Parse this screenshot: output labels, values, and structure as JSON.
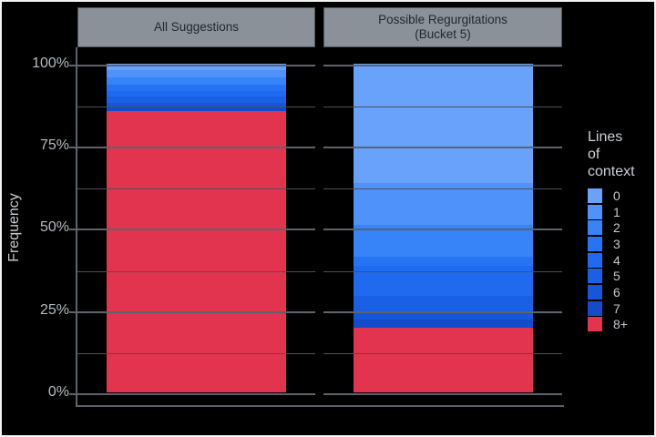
{
  "figure": {
    "background": "#000000",
    "border_color": "#f2f2f2"
  },
  "facet_headers": [
    {
      "lines": [
        "All Suggestions"
      ]
    },
    {
      "lines": [
        "Possible Regurgitations",
        "(Bucket 5)"
      ]
    }
  ],
  "y_axis": {
    "title": "Frequency",
    "tick_labels": [
      "100%",
      "75%",
      "50%",
      "25%",
      "0%"
    ],
    "major_pcts": [
      0,
      25,
      50,
      75,
      100
    ],
    "minor_pcts": [
      12.5,
      37.5,
      62.5,
      87.5
    ]
  },
  "legend": {
    "title_lines": [
      "Lines",
      "of",
      "context"
    ]
  },
  "chart_data": {
    "type": "bar",
    "subtype": "stacked-100percent",
    "title": "",
    "xlabel": "",
    "ylabel": "Frequency",
    "ylim": [
      0,
      100
    ],
    "ytick_labels": [
      "0%",
      "25%",
      "50%",
      "75%",
      "100%"
    ],
    "grid": "horizontal-major-and-minor",
    "legend_title": "Lines of context",
    "legend_position": "right",
    "categories": [
      "0",
      "1",
      "2",
      "3",
      "4",
      "5",
      "6",
      "7",
      "8+"
    ],
    "colors": {
      "0": "#69a2fb",
      "1": "#4e92fa",
      "2": "#3684f8",
      "3": "#2674f4",
      "4": "#1f6aee",
      "5": "#1a60e4",
      "6": "#1656d8",
      "7": "#134ccb",
      "8+": "#e2344f"
    },
    "facets": [
      {
        "label": "All Suggestions",
        "values_pct": {
          "0": 1.9,
          "1": 2.2,
          "2": 2.2,
          "3": 1.9,
          "4": 1.9,
          "5": 1.7,
          "6": 1.4,
          "7": 1.2,
          "8+": 85.6
        }
      },
      {
        "label": "Possible Regurgitations (Bucket 5)",
        "values_pct": {
          "0": 36.2,
          "1": 12.7,
          "2": 9.9,
          "3": 2.8,
          "4": 9.1,
          "5": 4.6,
          "6": 2.5,
          "7": 2.5,
          "8+": 19.7
        }
      }
    ]
  }
}
